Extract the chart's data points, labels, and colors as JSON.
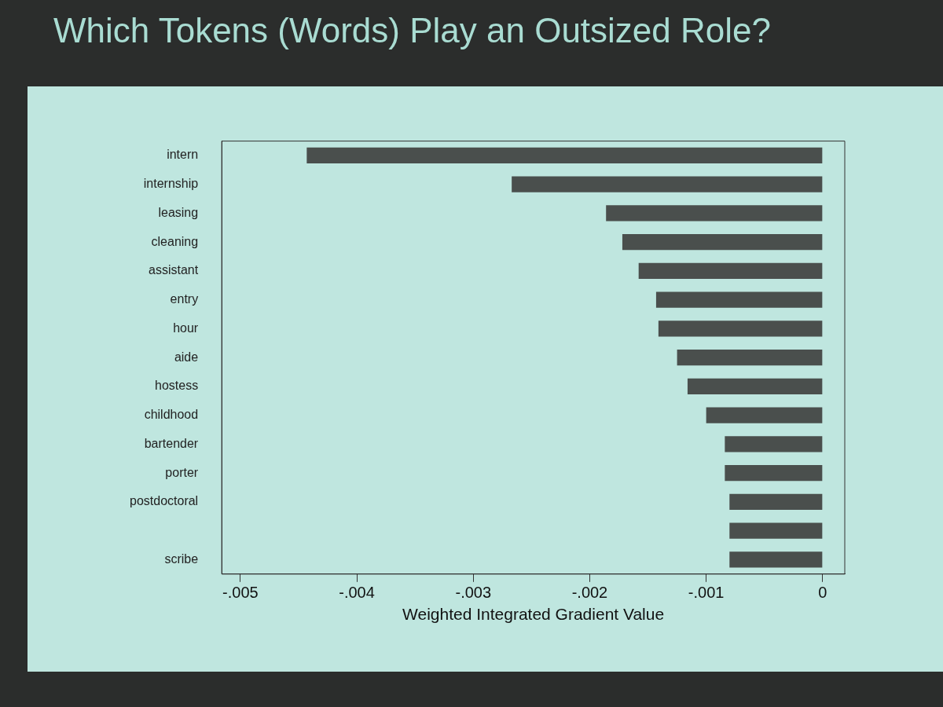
{
  "chart_data": {
    "type": "bar",
    "orientation": "horizontal",
    "title": "Which Tokens (Words) Play an Outsized Role?",
    "xlabel": "Weighted Integrated Gradient Value",
    "categories": [
      "intern",
      "internship",
      "leasing",
      "cleaning",
      "assistant",
      "entry",
      "hour",
      "aide",
      "hostess",
      "childhood",
      "bartender",
      "porter",
      "postdoctoral",
      null,
      "scribe"
    ],
    "values": [
      -0.00443,
      -0.00267,
      -0.00186,
      -0.00172,
      -0.00158,
      -0.00143,
      -0.00141,
      -0.00125,
      -0.00116,
      -0.001,
      -0.00084,
      -0.00084,
      -0.0008,
      -0.0008,
      -0.0008
    ],
    "color": "#4a4f4d",
    "xlim": [
      -0.00516,
      0.00019
    ],
    "xticks": [
      {
        "value": -0.005,
        "label": "-.005"
      },
      {
        "value": -0.004,
        "label": "-.004"
      },
      {
        "value": -0.003,
        "label": "-.003"
      },
      {
        "value": -0.002,
        "label": "-.002"
      },
      {
        "value": -0.001,
        "label": "-.001"
      },
      0
    ],
    "grid": false
  }
}
